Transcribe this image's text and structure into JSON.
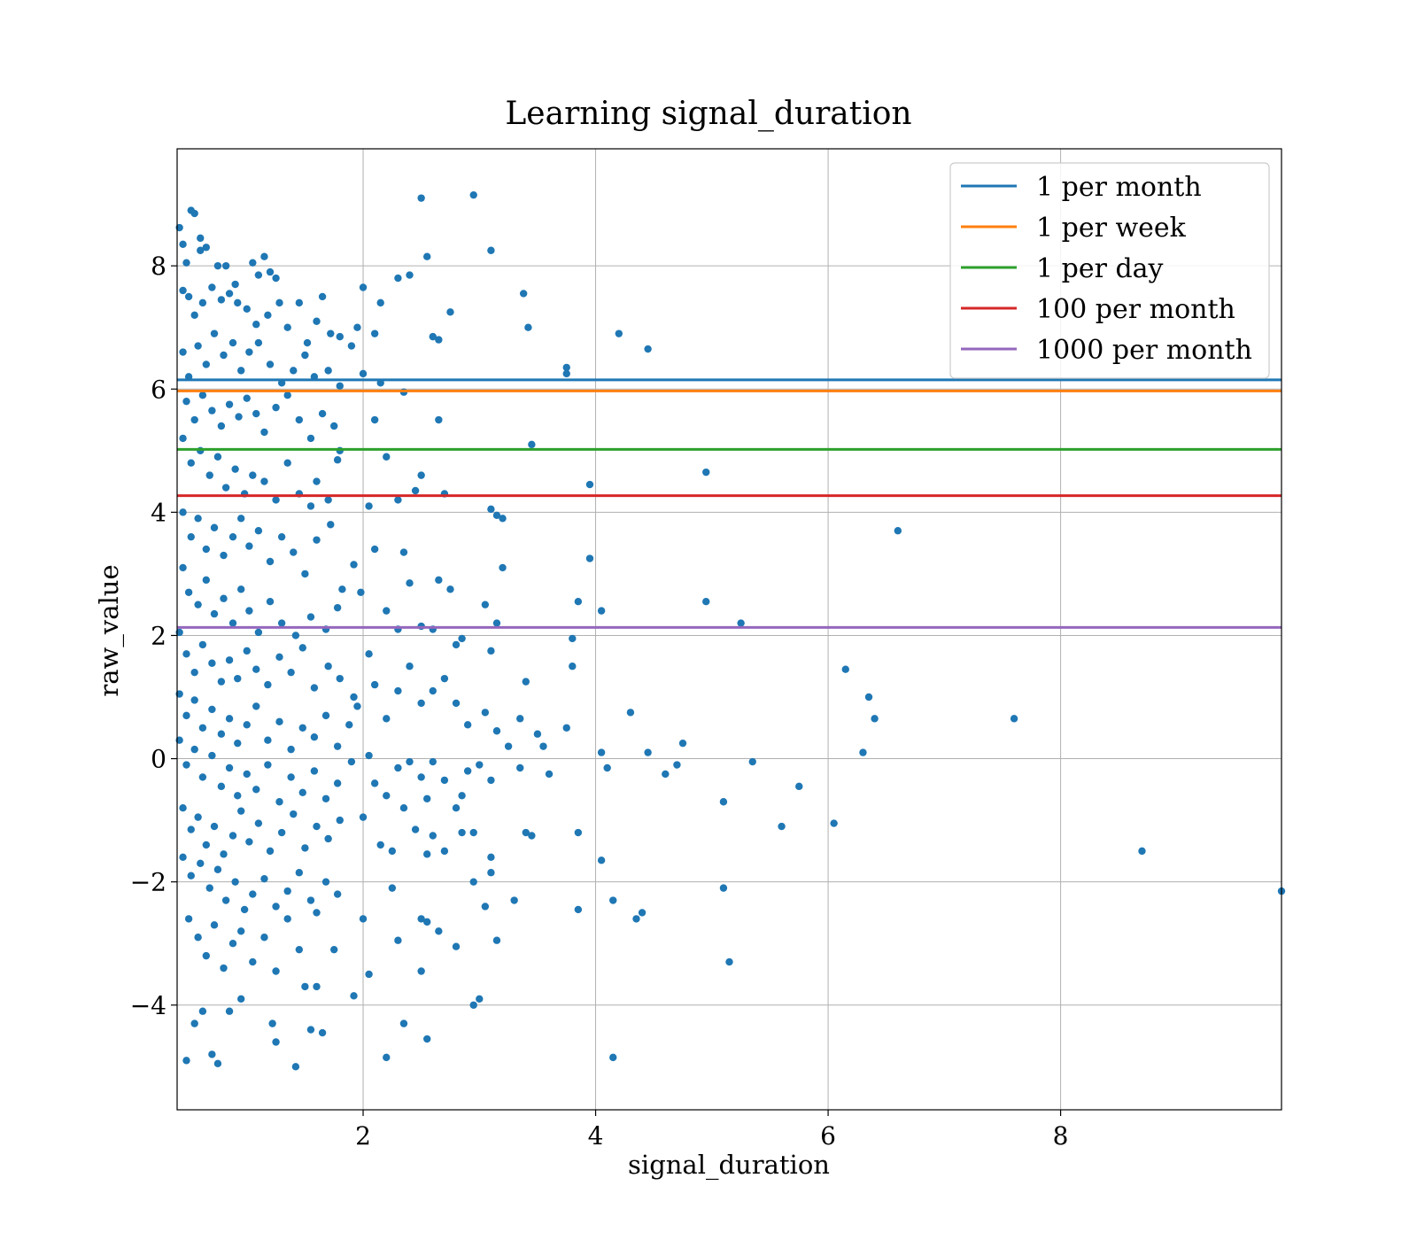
{
  "chart_data": {
    "type": "scatter",
    "title": "Learning signal_duration",
    "xlabel": "signal_duration",
    "ylabel": "raw_value",
    "xlim": [
      0.4,
      9.9
    ],
    "ylim": [
      -5.7,
      9.9
    ],
    "xticks": [
      2,
      4,
      6,
      8
    ],
    "yticks": [
      -4,
      -2,
      0,
      2,
      4,
      6,
      8
    ],
    "ytick_labels": [
      "−4",
      "−2",
      "0",
      "2",
      "4",
      "6",
      "8"
    ],
    "grid": true,
    "legend_placement": "top-right",
    "point_color": "#1f77b4",
    "points": [
      [
        0.42,
        8.62
      ],
      [
        0.45,
        8.35
      ],
      [
        0.48,
        8.05
      ],
      [
        0.52,
        8.9
      ],
      [
        0.55,
        8.85
      ],
      [
        0.6,
        8.45
      ],
      [
        0.6,
        8.25
      ],
      [
        0.65,
        8.3
      ],
      [
        0.75,
        8.0
      ],
      [
        0.82,
        8.0
      ],
      [
        0.9,
        7.7
      ],
      [
        1.05,
        8.05
      ],
      [
        1.1,
        7.85
      ],
      [
        1.15,
        8.15
      ],
      [
        1.2,
        7.9
      ],
      [
        1.25,
        7.8
      ],
      [
        0.45,
        7.6
      ],
      [
        0.5,
        7.5
      ],
      [
        0.55,
        7.2
      ],
      [
        0.62,
        7.4
      ],
      [
        0.7,
        7.65
      ],
      [
        0.78,
        7.45
      ],
      [
        0.85,
        7.55
      ],
      [
        0.92,
        7.4
      ],
      [
        1.0,
        7.3
      ],
      [
        1.08,
        7.05
      ],
      [
        1.18,
        7.2
      ],
      [
        1.28,
        7.4
      ],
      [
        1.35,
        7.0
      ],
      [
        1.45,
        7.4
      ],
      [
        1.52,
        6.75
      ],
      [
        1.6,
        7.1
      ],
      [
        1.65,
        7.5
      ],
      [
        1.72,
        6.9
      ],
      [
        1.8,
        6.85
      ],
      [
        1.9,
        6.7
      ],
      [
        1.95,
        7.0
      ],
      [
        0.45,
        6.6
      ],
      [
        0.5,
        6.2
      ],
      [
        0.58,
        6.7
      ],
      [
        0.65,
        6.4
      ],
      [
        0.72,
        6.9
      ],
      [
        0.8,
        6.55
      ],
      [
        0.88,
        6.75
      ],
      [
        0.95,
        6.3
      ],
      [
        1.02,
        6.6
      ],
      [
        1.1,
        6.75
      ],
      [
        1.2,
        6.4
      ],
      [
        1.3,
        6.1
      ],
      [
        1.4,
        6.3
      ],
      [
        1.5,
        6.55
      ],
      [
        1.58,
        6.2
      ],
      [
        1.7,
        6.3
      ],
      [
        1.8,
        6.05
      ],
      [
        0.48,
        5.8
      ],
      [
        0.55,
        5.5
      ],
      [
        0.62,
        5.9
      ],
      [
        0.7,
        5.65
      ],
      [
        0.78,
        5.4
      ],
      [
        0.85,
        5.75
      ],
      [
        0.93,
        5.55
      ],
      [
        1.0,
        5.85
      ],
      [
        1.08,
        5.6
      ],
      [
        1.15,
        5.3
      ],
      [
        1.25,
        5.7
      ],
      [
        1.35,
        5.9
      ],
      [
        1.45,
        5.5
      ],
      [
        1.55,
        5.2
      ],
      [
        1.65,
        5.6
      ],
      [
        1.75,
        5.4
      ],
      [
        1.8,
        5.0
      ],
      [
        0.45,
        5.2
      ],
      [
        0.52,
        4.8
      ],
      [
        0.6,
        5.0
      ],
      [
        0.68,
        4.6
      ],
      [
        0.75,
        4.9
      ],
      [
        0.82,
        4.4
      ],
      [
        0.9,
        4.7
      ],
      [
        0.98,
        4.3
      ],
      [
        1.05,
        4.6
      ],
      [
        1.15,
        4.5
      ],
      [
        1.25,
        4.2
      ],
      [
        1.35,
        4.8
      ],
      [
        1.45,
        4.3
      ],
      [
        1.55,
        4.1
      ],
      [
        1.6,
        4.5
      ],
      [
        1.7,
        4.2
      ],
      [
        1.78,
        4.85
      ],
      [
        0.45,
        4.0
      ],
      [
        0.52,
        3.6
      ],
      [
        0.58,
        3.9
      ],
      [
        0.65,
        3.4
      ],
      [
        0.72,
        3.75
      ],
      [
        0.8,
        3.3
      ],
      [
        0.88,
        3.6
      ],
      [
        0.95,
        3.9
      ],
      [
        1.02,
        3.45
      ],
      [
        1.1,
        3.7
      ],
      [
        1.2,
        3.2
      ],
      [
        1.3,
        3.6
      ],
      [
        1.4,
        3.35
      ],
      [
        1.5,
        3.0
      ],
      [
        1.6,
        3.55
      ],
      [
        1.72,
        3.8
      ],
      [
        1.82,
        2.75
      ],
      [
        1.92,
        3.15
      ],
      [
        1.98,
        2.7
      ],
      [
        0.45,
        3.1
      ],
      [
        0.5,
        2.7
      ],
      [
        0.58,
        2.5
      ],
      [
        0.65,
        2.9
      ],
      [
        0.72,
        2.35
      ],
      [
        0.8,
        2.6
      ],
      [
        0.88,
        2.2
      ],
      [
        0.95,
        2.75
      ],
      [
        1.02,
        2.4
      ],
      [
        1.1,
        2.05
      ],
      [
        1.2,
        2.55
      ],
      [
        1.3,
        2.2
      ],
      [
        1.42,
        2.0
      ],
      [
        1.55,
        2.3
      ],
      [
        1.68,
        2.1
      ],
      [
        1.78,
        2.45
      ],
      [
        0.42,
        2.05
      ],
      [
        0.48,
        1.7
      ],
      [
        0.55,
        1.4
      ],
      [
        0.62,
        1.85
      ],
      [
        0.7,
        1.55
      ],
      [
        0.78,
        1.25
      ],
      [
        0.85,
        1.6
      ],
      [
        0.92,
        1.3
      ],
      [
        1.0,
        1.75
      ],
      [
        1.08,
        1.45
      ],
      [
        1.18,
        1.2
      ],
      [
        1.28,
        1.65
      ],
      [
        1.38,
        1.4
      ],
      [
        1.48,
        1.8
      ],
      [
        1.58,
        1.15
      ],
      [
        1.7,
        1.5
      ],
      [
        1.8,
        1.3
      ],
      [
        1.92,
        1.0
      ],
      [
        0.42,
        1.05
      ],
      [
        0.48,
        0.7
      ],
      [
        0.55,
        0.95
      ],
      [
        0.62,
        0.5
      ],
      [
        0.7,
        0.8
      ],
      [
        0.78,
        0.4
      ],
      [
        0.85,
        0.65
      ],
      [
        0.92,
        0.25
      ],
      [
        1.0,
        0.55
      ],
      [
        1.08,
        0.85
      ],
      [
        1.18,
        0.3
      ],
      [
        1.28,
        0.6
      ],
      [
        1.38,
        0.15
      ],
      [
        1.48,
        0.5
      ],
      [
        1.58,
        0.35
      ],
      [
        1.68,
        0.7
      ],
      [
        1.78,
        0.2
      ],
      [
        1.88,
        0.55
      ],
      [
        1.95,
        0.85
      ],
      [
        0.42,
        0.3
      ],
      [
        0.48,
        -0.1
      ],
      [
        0.55,
        0.15
      ],
      [
        0.62,
        -0.3
      ],
      [
        0.7,
        0.05
      ],
      [
        0.78,
        -0.45
      ],
      [
        0.85,
        -0.15
      ],
      [
        0.92,
        -0.6
      ],
      [
        1.0,
        -0.25
      ],
      [
        1.08,
        -0.5
      ],
      [
        1.18,
        -0.1
      ],
      [
        1.28,
        -0.7
      ],
      [
        1.38,
        -0.3
      ],
      [
        1.48,
        -0.55
      ],
      [
        1.58,
        -0.2
      ],
      [
        1.68,
        -0.65
      ],
      [
        1.78,
        -0.4
      ],
      [
        1.9,
        -0.05
      ],
      [
        0.45,
        -0.8
      ],
      [
        0.52,
        -1.15
      ],
      [
        0.58,
        -0.95
      ],
      [
        0.65,
        -1.4
      ],
      [
        0.72,
        -1.1
      ],
      [
        0.8,
        -1.55
      ],
      [
        0.88,
        -1.25
      ],
      [
        0.95,
        -0.85
      ],
      [
        1.02,
        -1.35
      ],
      [
        1.1,
        -1.05
      ],
      [
        1.2,
        -1.5
      ],
      [
        1.3,
        -1.2
      ],
      [
        1.4,
        -0.9
      ],
      [
        1.5,
        -1.45
      ],
      [
        1.6,
        -1.1
      ],
      [
        1.7,
        -1.3
      ],
      [
        1.8,
        -1.0
      ],
      [
        0.45,
        -1.6
      ],
      [
        0.52,
        -1.9
      ],
      [
        0.6,
        -1.7
      ],
      [
        0.68,
        -2.1
      ],
      [
        0.75,
        -1.8
      ],
      [
        0.82,
        -2.3
      ],
      [
        0.9,
        -2.0
      ],
      [
        0.98,
        -2.45
      ],
      [
        1.05,
        -2.2
      ],
      [
        1.15,
        -1.95
      ],
      [
        1.25,
        -2.4
      ],
      [
        1.35,
        -2.15
      ],
      [
        1.45,
        -1.85
      ],
      [
        1.55,
        -2.3
      ],
      [
        1.68,
        -2.0
      ],
      [
        1.78,
        -2.2
      ],
      [
        0.5,
        -2.6
      ],
      [
        0.58,
        -2.9
      ],
      [
        0.65,
        -3.2
      ],
      [
        0.72,
        -2.7
      ],
      [
        0.8,
        -3.4
      ],
      [
        0.88,
        -3.0
      ],
      [
        0.95,
        -2.8
      ],
      [
        1.05,
        -3.3
      ],
      [
        1.15,
        -2.9
      ],
      [
        1.25,
        -3.45
      ],
      [
        1.35,
        -2.6
      ],
      [
        1.45,
        -3.1
      ],
      [
        1.6,
        -2.5
      ],
      [
        1.75,
        -3.1
      ],
      [
        0.48,
        -4.9
      ],
      [
        0.55,
        -4.3
      ],
      [
        0.62,
        -4.1
      ],
      [
        0.7,
        -4.8
      ],
      [
        0.75,
        -4.95
      ],
      [
        0.85,
        -4.1
      ],
      [
        0.95,
        -3.9
      ],
      [
        1.22,
        -4.3
      ],
      [
        1.25,
        -4.6
      ],
      [
        1.42,
        -5.0
      ],
      [
        1.5,
        -3.7
      ],
      [
        1.55,
        -4.4
      ],
      [
        1.6,
        -3.7
      ],
      [
        1.65,
        -4.45
      ],
      [
        1.92,
        -3.85
      ],
      [
        2.0,
        7.65
      ],
      [
        2.1,
        6.9
      ],
      [
        2.15,
        7.4
      ],
      [
        2.3,
        7.8
      ],
      [
        2.4,
        7.85
      ],
      [
        2.5,
        9.1
      ],
      [
        2.55,
        8.15
      ],
      [
        2.6,
        6.85
      ],
      [
        2.65,
        6.8
      ],
      [
        2.75,
        7.25
      ],
      [
        2.95,
        9.15
      ],
      [
        3.1,
        8.25
      ],
      [
        3.38,
        7.55
      ],
      [
        3.42,
        7.0
      ],
      [
        3.75,
        6.35
      ],
      [
        3.75,
        6.25
      ],
      [
        4.2,
        6.9
      ],
      [
        4.45,
        6.65
      ],
      [
        2.0,
        6.25
      ],
      [
        2.1,
        5.5
      ],
      [
        2.15,
        6.1
      ],
      [
        2.2,
        4.9
      ],
      [
        2.3,
        4.2
      ],
      [
        2.35,
        5.95
      ],
      [
        2.45,
        4.35
      ],
      [
        2.5,
        4.6
      ],
      [
        2.7,
        4.3
      ],
      [
        2.65,
        5.5
      ],
      [
        3.1,
        4.05
      ],
      [
        3.15,
        3.95
      ],
      [
        3.2,
        3.9
      ],
      [
        3.45,
        5.1
      ],
      [
        3.95,
        4.45
      ],
      [
        4.95,
        4.65
      ],
      [
        6.6,
        3.7
      ],
      [
        2.05,
        4.1
      ],
      [
        2.1,
        3.4
      ],
      [
        2.2,
        2.4
      ],
      [
        2.3,
        2.1
      ],
      [
        2.35,
        3.35
      ],
      [
        2.4,
        2.85
      ],
      [
        2.5,
        2.15
      ],
      [
        2.6,
        2.1
      ],
      [
        2.65,
        2.9
      ],
      [
        2.75,
        2.75
      ],
      [
        2.8,
        1.85
      ],
      [
        2.85,
        1.95
      ],
      [
        3.05,
        2.5
      ],
      [
        3.1,
        1.75
      ],
      [
        3.15,
        2.2
      ],
      [
        3.2,
        3.1
      ],
      [
        3.8,
        1.95
      ],
      [
        3.85,
        2.55
      ],
      [
        3.95,
        3.25
      ],
      [
        4.05,
        2.4
      ],
      [
        4.95,
        2.55
      ],
      [
        5.25,
        2.2
      ],
      [
        2.05,
        1.7
      ],
      [
        2.1,
        1.2
      ],
      [
        2.2,
        0.65
      ],
      [
        2.3,
        1.1
      ],
      [
        2.4,
        1.5
      ],
      [
        2.5,
        0.9
      ],
      [
        2.6,
        1.1
      ],
      [
        2.7,
        1.3
      ],
      [
        2.8,
        0.9
      ],
      [
        2.9,
        0.55
      ],
      [
        3.05,
        0.75
      ],
      [
        3.15,
        0.45
      ],
      [
        3.25,
        0.2
      ],
      [
        3.35,
        0.65
      ],
      [
        3.4,
        1.25
      ],
      [
        3.5,
        0.4
      ],
      [
        3.55,
        0.2
      ],
      [
        3.75,
        0.5
      ],
      [
        3.8,
        1.5
      ],
      [
        4.05,
        0.1
      ],
      [
        4.3,
        0.75
      ],
      [
        4.45,
        0.1
      ],
      [
        4.75,
        0.25
      ],
      [
        6.15,
        1.45
      ],
      [
        6.35,
        1.0
      ],
      [
        6.4,
        0.65
      ],
      [
        7.6,
        0.65
      ],
      [
        2.05,
        0.05
      ],
      [
        2.1,
        -0.4
      ],
      [
        2.2,
        -0.6
      ],
      [
        2.3,
        -0.15
      ],
      [
        2.4,
        -0.05
      ],
      [
        2.5,
        -0.3
      ],
      [
        2.55,
        -0.65
      ],
      [
        2.6,
        -0.05
      ],
      [
        2.7,
        -0.35
      ],
      [
        2.8,
        -0.8
      ],
      [
        2.9,
        -0.2
      ],
      [
        3.0,
        -0.1
      ],
      [
        3.1,
        -0.35
      ],
      [
        3.35,
        -0.15
      ],
      [
        3.6,
        -0.25
      ],
      [
        4.1,
        -0.15
      ],
      [
        4.6,
        -0.25
      ],
      [
        4.7,
        -0.1
      ],
      [
        5.1,
        -0.7
      ],
      [
        5.35,
        -0.05
      ],
      [
        5.75,
        -0.45
      ],
      [
        6.3,
        0.1
      ],
      [
        2.0,
        -0.95
      ],
      [
        2.15,
        -1.4
      ],
      [
        2.25,
        -1.5
      ],
      [
        2.35,
        -0.8
      ],
      [
        2.45,
        -1.15
      ],
      [
        2.55,
        -1.55
      ],
      [
        2.6,
        -1.25
      ],
      [
        2.7,
        -1.5
      ],
      [
        2.85,
        -1.2
      ],
      [
        2.95,
        -1.2
      ],
      [
        3.1,
        -1.85
      ],
      [
        3.4,
        -1.2
      ],
      [
        3.45,
        -1.25
      ],
      [
        3.85,
        -1.2
      ],
      [
        4.05,
        -1.65
      ],
      [
        5.6,
        -1.1
      ],
      [
        6.05,
        -1.05
      ],
      [
        8.7,
        -1.5
      ],
      [
        2.0,
        -2.6
      ],
      [
        2.25,
        -2.1
      ],
      [
        2.5,
        -2.6
      ],
      [
        2.55,
        -2.65
      ],
      [
        2.65,
        -2.8
      ],
      [
        2.8,
        -3.05
      ],
      [
        2.95,
        -2.0
      ],
      [
        3.05,
        -2.4
      ],
      [
        3.15,
        -2.95
      ],
      [
        3.3,
        -2.3
      ],
      [
        3.85,
        -2.45
      ],
      [
        4.15,
        -2.3
      ],
      [
        4.35,
        -2.6
      ],
      [
        4.4,
        -2.5
      ],
      [
        5.1,
        -2.1
      ],
      [
        9.9,
        -2.15
      ],
      [
        2.05,
        -3.5
      ],
      [
        2.3,
        -2.95
      ],
      [
        2.5,
        -3.45
      ],
      [
        2.95,
        -4.0
      ],
      [
        3.0,
        -3.9
      ],
      [
        2.2,
        -4.85
      ],
      [
        2.35,
        -4.3
      ],
      [
        2.55,
        -4.55
      ],
      [
        4.15,
        -4.85
      ],
      [
        5.15,
        -3.3
      ],
      [
        3.1,
        -1.6
      ],
      [
        2.85,
        -0.6
      ]
    ],
    "hlines": [
      {
        "name": "1 per month",
        "y": 6.15,
        "color": "#1f77b4"
      },
      {
        "name": "1 per week",
        "y": 5.97,
        "color": "#ff7f0e"
      },
      {
        "name": "1 per day",
        "y": 5.02,
        "color": "#2ca02c"
      },
      {
        "name": "100 per month",
        "y": 4.27,
        "color": "#d62728"
      },
      {
        "name": "1000 per month",
        "y": 2.13,
        "color": "#9467bd"
      }
    ]
  }
}
